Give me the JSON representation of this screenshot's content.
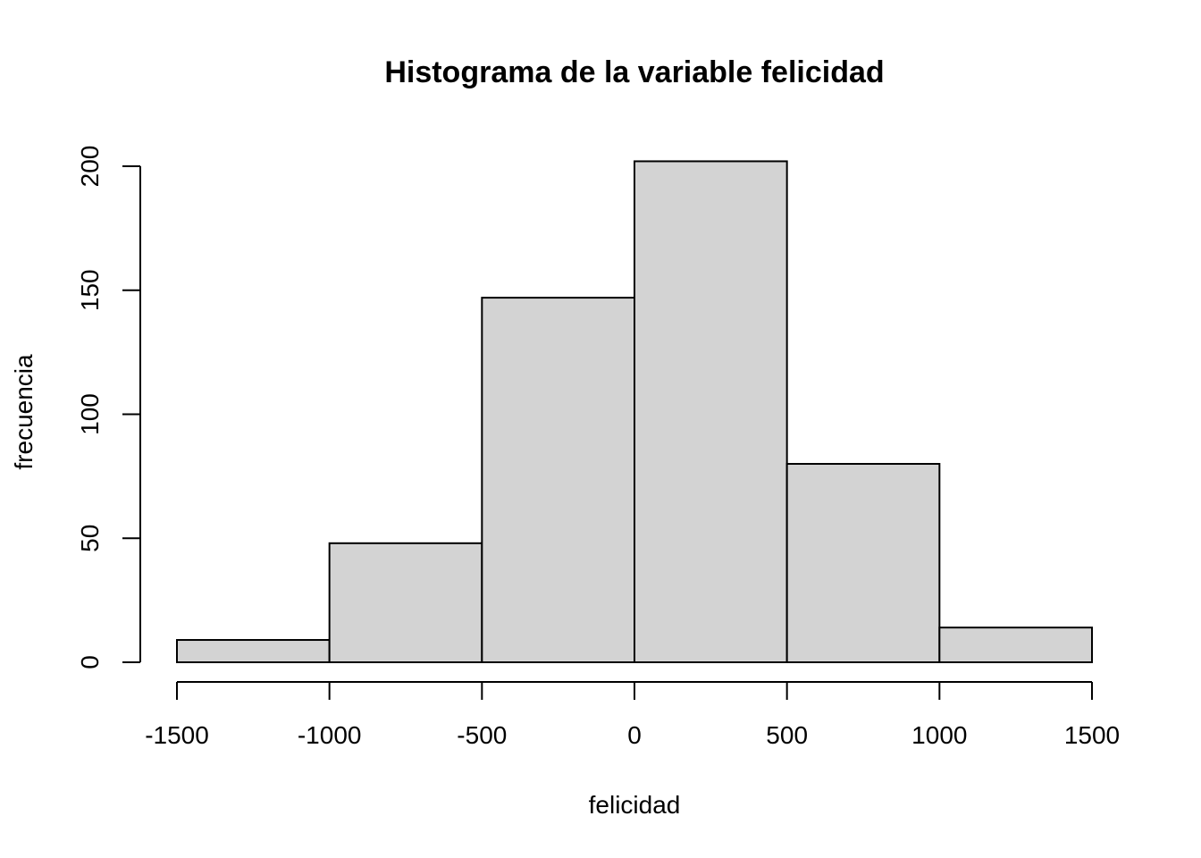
{
  "chart_data": {
    "type": "bar",
    "subtype": "histogram",
    "title": "Histograma de la variable felicidad",
    "xlabel": "felicidad",
    "ylabel": "frecuencia",
    "bin_edges": [
      -1500,
      -1000,
      -500,
      0,
      500,
      1000,
      1500
    ],
    "values": [
      9,
      48,
      147,
      202,
      80,
      14
    ],
    "xlim": [
      -1500,
      1500
    ],
    "ylim": [
      0,
      200
    ],
    "x_ticks": [
      -1500,
      -1000,
      -500,
      0,
      500,
      1000,
      1500
    ],
    "x_tick_labels": [
      "-1500",
      "-1000",
      "-500",
      "0",
      "500",
      "1000",
      "1500"
    ],
    "y_ticks": [
      0,
      50,
      100,
      150,
      200
    ],
    "y_tick_labels": [
      "0",
      "50",
      "100",
      "150",
      "200"
    ],
    "bar_color": "#d3d3d3",
    "edge_color": "#000000",
    "grid": false,
    "legend": "none"
  }
}
